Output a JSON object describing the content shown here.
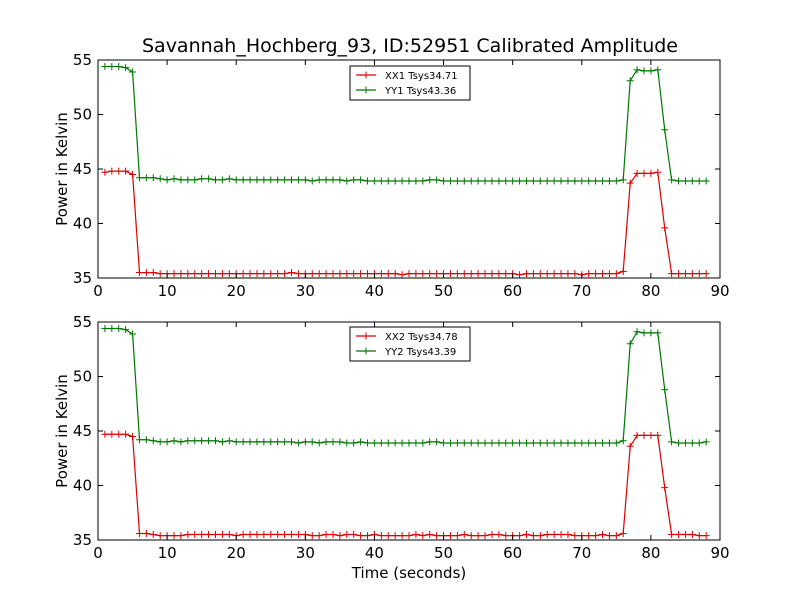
{
  "title": "Savannah_Hochberg_93, ID:52951 Calibrated Amplitude",
  "colors": {
    "xx": "#dd0000",
    "yy": "#007700"
  },
  "chart_data": [
    {
      "type": "line",
      "title": "Savannah_Hochberg_93, ID:52951 Calibrated Amplitude",
      "xlabel": "",
      "ylabel": "Power in Kelvin",
      "xlim": [
        0,
        90
      ],
      "ylim": [
        35,
        55
      ],
      "xticks": [
        0,
        10,
        20,
        30,
        40,
        50,
        60,
        70,
        80,
        90
      ],
      "yticks": [
        35,
        40,
        45,
        50,
        55
      ],
      "grid": false,
      "legend": "top-center",
      "x": [
        1,
        2,
        3,
        4,
        5,
        6,
        7,
        8,
        9,
        10,
        11,
        12,
        13,
        14,
        15,
        16,
        17,
        18,
        19,
        20,
        21,
        22,
        23,
        24,
        25,
        26,
        27,
        28,
        29,
        30,
        31,
        32,
        33,
        34,
        35,
        36,
        37,
        38,
        39,
        40,
        41,
        42,
        43,
        44,
        45,
        46,
        47,
        48,
        49,
        50,
        51,
        52,
        53,
        54,
        55,
        56,
        57,
        58,
        59,
        60,
        61,
        62,
        63,
        64,
        65,
        66,
        67,
        68,
        69,
        70,
        71,
        72,
        73,
        74,
        75,
        76,
        77,
        78,
        79,
        80,
        81,
        82,
        83,
        84,
        85,
        86,
        87,
        88
      ],
      "series": [
        {
          "name": "XX1 Tsys34.71",
          "color": "#dd0000",
          "values": [
            44.7,
            44.8,
            44.8,
            44.8,
            44.5,
            35.5,
            35.5,
            35.5,
            35.4,
            35.4,
            35.4,
            35.4,
            35.4,
            35.4,
            35.4,
            35.4,
            35.4,
            35.4,
            35.4,
            35.4,
            35.4,
            35.4,
            35.4,
            35.4,
            35.4,
            35.4,
            35.4,
            35.5,
            35.4,
            35.4,
            35.4,
            35.4,
            35.4,
            35.4,
            35.4,
            35.4,
            35.4,
            35.4,
            35.4,
            35.4,
            35.4,
            35.4,
            35.4,
            35.3,
            35.4,
            35.4,
            35.4,
            35.4,
            35.4,
            35.4,
            35.4,
            35.4,
            35.4,
            35.4,
            35.4,
            35.4,
            35.4,
            35.4,
            35.4,
            35.4,
            35.3,
            35.4,
            35.4,
            35.4,
            35.4,
            35.4,
            35.4,
            35.4,
            35.4,
            35.3,
            35.4,
            35.4,
            35.4,
            35.4,
            35.4,
            35.6,
            43.7,
            44.6,
            44.6,
            44.6,
            44.7,
            39.6,
            35.4,
            35.4,
            35.4,
            35.4,
            35.4,
            35.4
          ]
        },
        {
          "name": "YY1 Tsys43.36",
          "color": "#007700",
          "values": [
            54.4,
            54.4,
            54.4,
            54.3,
            53.9,
            44.2,
            44.2,
            44.2,
            44.1,
            44.0,
            44.1,
            44.0,
            44.0,
            44.0,
            44.1,
            44.1,
            44.0,
            44.0,
            44.1,
            44.0,
            44.0,
            44.0,
            44.0,
            44.0,
            44.0,
            44.0,
            44.0,
            44.0,
            44.0,
            44.0,
            43.9,
            44.0,
            44.0,
            44.0,
            44.0,
            43.9,
            44.0,
            44.0,
            43.9,
            43.9,
            43.9,
            43.9,
            43.9,
            43.9,
            43.9,
            43.9,
            43.9,
            44.0,
            44.0,
            43.9,
            43.9,
            43.9,
            43.9,
            43.9,
            43.9,
            43.9,
            43.9,
            43.9,
            43.9,
            43.9,
            43.9,
            43.9,
            43.9,
            43.9,
            43.9,
            43.9,
            43.9,
            43.9,
            43.9,
            43.9,
            43.9,
            43.9,
            43.9,
            43.9,
            43.9,
            44.0,
            53.1,
            54.1,
            54.0,
            54.0,
            54.1,
            48.6,
            44.0,
            43.9,
            43.9,
            43.9,
            43.9,
            43.9
          ]
        }
      ]
    },
    {
      "type": "line",
      "title": "",
      "xlabel": "Time (seconds)",
      "ylabel": "Power in Kelvin",
      "xlim": [
        0,
        90
      ],
      "ylim": [
        35,
        55
      ],
      "xticks": [
        0,
        10,
        20,
        30,
        40,
        50,
        60,
        70,
        80,
        90
      ],
      "yticks": [
        35,
        40,
        45,
        50,
        55
      ],
      "grid": false,
      "legend": "top-center",
      "x": [
        1,
        2,
        3,
        4,
        5,
        6,
        7,
        8,
        9,
        10,
        11,
        12,
        13,
        14,
        15,
        16,
        17,
        18,
        19,
        20,
        21,
        22,
        23,
        24,
        25,
        26,
        27,
        28,
        29,
        30,
        31,
        32,
        33,
        34,
        35,
        36,
        37,
        38,
        39,
        40,
        41,
        42,
        43,
        44,
        45,
        46,
        47,
        48,
        49,
        50,
        51,
        52,
        53,
        54,
        55,
        56,
        57,
        58,
        59,
        60,
        61,
        62,
        63,
        64,
        65,
        66,
        67,
        68,
        69,
        70,
        71,
        72,
        73,
        74,
        75,
        76,
        77,
        78,
        79,
        80,
        81,
        82,
        83,
        84,
        85,
        86,
        87,
        88
      ],
      "series": [
        {
          "name": "XX2 Tsys34.78",
          "color": "#dd0000",
          "values": [
            44.7,
            44.7,
            44.7,
            44.7,
            44.5,
            35.6,
            35.6,
            35.5,
            35.4,
            35.4,
            35.4,
            35.4,
            35.5,
            35.5,
            35.5,
            35.5,
            35.5,
            35.5,
            35.5,
            35.4,
            35.5,
            35.5,
            35.5,
            35.5,
            35.5,
            35.5,
            35.5,
            35.5,
            35.5,
            35.5,
            35.4,
            35.4,
            35.5,
            35.5,
            35.4,
            35.5,
            35.5,
            35.4,
            35.4,
            35.5,
            35.4,
            35.4,
            35.4,
            35.4,
            35.4,
            35.5,
            35.4,
            35.5,
            35.4,
            35.4,
            35.4,
            35.4,
            35.5,
            35.4,
            35.4,
            35.4,
            35.5,
            35.5,
            35.4,
            35.4,
            35.4,
            35.5,
            35.4,
            35.4,
            35.5,
            35.5,
            35.5,
            35.5,
            35.4,
            35.4,
            35.4,
            35.4,
            35.5,
            35.4,
            35.4,
            35.6,
            43.6,
            44.6,
            44.6,
            44.6,
            44.6,
            39.8,
            35.5,
            35.5,
            35.5,
            35.5,
            35.4,
            35.4
          ]
        },
        {
          "name": "YY2 Tsys43.39",
          "color": "#007700",
          "values": [
            54.4,
            54.4,
            54.4,
            54.3,
            53.9,
            44.2,
            44.2,
            44.1,
            44.0,
            44.0,
            44.1,
            44.0,
            44.1,
            44.1,
            44.1,
            44.1,
            44.1,
            44.0,
            44.1,
            44.0,
            44.0,
            44.0,
            44.0,
            44.0,
            44.0,
            44.0,
            44.0,
            44.0,
            43.9,
            44.0,
            44.0,
            43.9,
            44.0,
            44.0,
            44.0,
            43.9,
            43.9,
            44.0,
            43.9,
            43.9,
            43.9,
            43.9,
            43.9,
            43.9,
            43.9,
            43.9,
            43.9,
            44.0,
            44.0,
            43.9,
            43.9,
            43.9,
            43.9,
            43.9,
            43.9,
            43.9,
            43.9,
            43.9,
            43.9,
            43.9,
            43.9,
            43.9,
            43.9,
            43.9,
            43.9,
            43.9,
            43.9,
            43.9,
            43.9,
            43.9,
            43.9,
            43.9,
            43.9,
            43.9,
            43.9,
            44.1,
            53.0,
            54.1,
            54.0,
            54.0,
            54.0,
            48.8,
            44.0,
            43.9,
            43.9,
            43.9,
            43.9,
            44.0
          ]
        }
      ]
    }
  ]
}
